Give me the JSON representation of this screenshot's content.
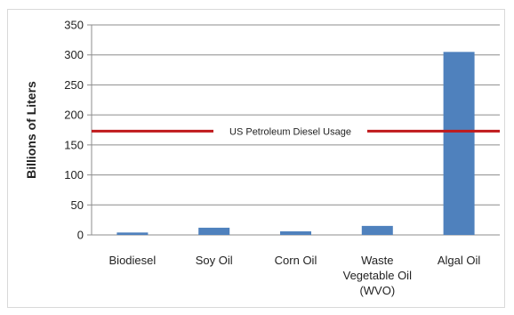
{
  "chart_data": {
    "type": "bar",
    "categories": [
      "Biodiesel",
      "Soy Oil",
      "Corn Oil",
      "Waste Vegetable Oil (WVO)",
      "Algal Oil"
    ],
    "category_label_lines": [
      [
        "Biodiesel"
      ],
      [
        "Soy Oil"
      ],
      [
        "Corn Oil"
      ],
      [
        "Waste",
        "Vegetable Oil",
        "(WVO)"
      ],
      [
        "Algal Oil"
      ]
    ],
    "values": [
      4,
      12,
      6,
      15,
      305
    ],
    "ylabel": "Billions of Liters",
    "xlabel": "",
    "ylim": [
      0,
      350
    ],
    "yticks": [
      0,
      50,
      100,
      150,
      200,
      250,
      300,
      350
    ],
    "grid": true,
    "reference_line": {
      "label": "US Petroleum Diesel Usage",
      "value": 173,
      "color": "#c0191c"
    },
    "bar_color": "#4f81bd"
  }
}
